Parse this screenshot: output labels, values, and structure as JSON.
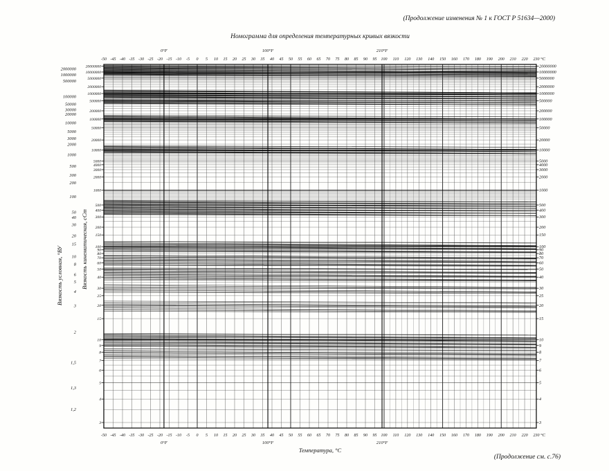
{
  "page": {
    "header_note": "(Продолжение изменения № 1 к ГОСТ Р 51634—2000)",
    "footer_note": "(Продолжение см. с.76)"
  },
  "chart_data": {
    "type": "line",
    "title": "Номограмма для определения температурных кривых вязкости",
    "xlabel": "Температура, °С",
    "x_unit": "°C",
    "ylabel_outer": "Вязкость условная, °ВУ",
    "ylabel_inner": "Вязкость кинематическая, сСт",
    "x_axis": {
      "scale": "segmented linear: -50..100 °C step 5, 110..230 °C step 10",
      "ticks_c": [
        -50,
        -45,
        -40,
        -35,
        -30,
        -25,
        -20,
        -15,
        -10,
        -5,
        0,
        5,
        10,
        15,
        20,
        25,
        30,
        35,
        40,
        45,
        50,
        55,
        60,
        65,
        70,
        75,
        80,
        85,
        90,
        95,
        100,
        110,
        120,
        130,
        140,
        150,
        160,
        170,
        180,
        190,
        200,
        210,
        220,
        230
      ],
      "fahrenheit_marks": [
        {
          "label": "0°F",
          "celsius": -17.8
        },
        {
          "label": "100°F",
          "celsius": 37.8
        },
        {
          "label": "210°F",
          "celsius": 98.9
        }
      ]
    },
    "y_axis_kinematic_cst": {
      "scale": "double-logarithmic (ASTM viscosity scale)",
      "range": [
        3,
        20000000
      ],
      "labeled_ticks": [
        20000000,
        10000000,
        5000000,
        2000000,
        1000000,
        500000,
        200000,
        100000,
        50000,
        20000,
        10000,
        5000,
        4000,
        3000,
        2000,
        1000,
        500,
        400,
        300,
        200,
        150,
        100,
        90,
        80,
        70,
        60,
        50,
        40,
        30,
        25,
        20,
        15,
        10,
        9,
        8,
        7,
        6,
        5,
        4,
        3
      ]
    },
    "y_axis_conditional_vu": {
      "labeled_ticks": [
        {
          "label": "2000000",
          "value": 2000000
        },
        {
          "label": "1000000",
          "value": 1000000
        },
        {
          "label": "500000",
          "value": 500000
        },
        {
          "label": "100000",
          "value": 100000
        },
        {
          "label": "50000",
          "value": 50000
        },
        {
          "label": "30000",
          "value": 30000
        },
        {
          "label": "20000",
          "value": 20000
        },
        {
          "label": "10000",
          "value": 10000
        },
        {
          "label": "5000",
          "value": 5000
        },
        {
          "label": "3000",
          "value": 3000
        },
        {
          "label": "2000",
          "value": 2000
        },
        {
          "label": "1000",
          "value": 1000
        },
        {
          "label": "500",
          "value": 500
        },
        {
          "label": "300",
          "value": 300
        },
        {
          "label": "200",
          "value": 200
        },
        {
          "label": "100",
          "value": 100
        },
        {
          "label": "50",
          "value": 50
        },
        {
          "label": "40",
          "value": 40
        },
        {
          "label": "30",
          "value": 30
        },
        {
          "label": "20",
          "value": 20
        },
        {
          "label": "15",
          "value": 15
        },
        {
          "label": "10",
          "value": 10
        },
        {
          "label": "8",
          "value": 8
        },
        {
          "label": "6",
          "value": 6
        },
        {
          "label": "5",
          "value": 5
        },
        {
          "label": "4",
          "value": 4
        },
        {
          "label": "3",
          "value": 3
        },
        {
          "label": "2",
          "value": 2
        },
        {
          "label": "1,5",
          "value": 1.5
        },
        {
          "label": "1,3",
          "value": 1.3
        },
        {
          "label": "1,2",
          "value": 1.2
        }
      ]
    },
    "curve_bands_cst": [
      {
        "nu_min": 7000000,
        "nu_max": 22000000,
        "lines": 26
      },
      {
        "nu_min": 650000,
        "nu_max": 1400000,
        "lines": 16
      },
      {
        "nu_min": 380000,
        "nu_max": 560000,
        "lines": 10
      },
      {
        "nu_min": 80000,
        "nu_max": 135000,
        "lines": 14
      },
      {
        "nu_min": 8500,
        "nu_max": 13500,
        "lines": 14
      },
      {
        "nu_min": 330,
        "nu_max": 620,
        "lines": 26
      },
      {
        "nu_min": 85,
        "nu_max": 120,
        "lines": 14
      },
      {
        "nu_min": 56,
        "nu_max": 76,
        "lines": 12
      },
      {
        "nu_min": 37,
        "nu_max": 52,
        "lines": 14
      },
      {
        "nu_min": 27,
        "nu_max": 33,
        "lines": 8
      },
      {
        "nu_min": 17.5,
        "nu_max": 22,
        "lines": 10
      },
      {
        "nu_min": 8.8,
        "nu_max": 11.2,
        "lines": 18
      },
      {
        "nu_min": 7.2,
        "nu_max": 8.5,
        "lines": 10
      }
    ]
  }
}
